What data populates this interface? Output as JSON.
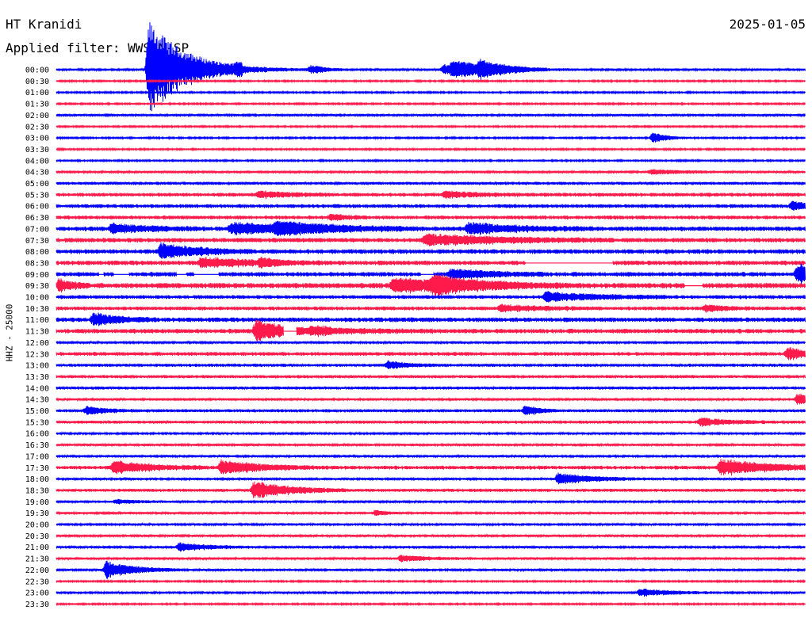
{
  "header": {
    "station": "HT Kranidi",
    "date": "2025-01-05",
    "filter": "Applied filter: WWSSN-SP"
  },
  "chart_data": {
    "type": "line",
    "title": "HT Kranidi",
    "subtitle": "Applied filter: WWSSN-SP",
    "ylabel": "HHZ - 25000",
    "row_labels": [
      "00:00",
      "00:30",
      "01:00",
      "01:30",
      "02:00",
      "02:30",
      "03:00",
      "03:30",
      "04:00",
      "04:30",
      "05:00",
      "05:30",
      "06:00",
      "06:30",
      "07:00",
      "07:30",
      "08:00",
      "08:30",
      "09:00",
      "09:30",
      "10:00",
      "10:30",
      "11:00",
      "11:30",
      "12:00",
      "12:30",
      "13:00",
      "13:30",
      "14:00",
      "14:30",
      "15:00",
      "15:30",
      "16:00",
      "16:30",
      "17:00",
      "17:30",
      "18:00",
      "18:30",
      "19:00",
      "19:30",
      "20:00",
      "20:30",
      "21:00",
      "21:30",
      "22:00",
      "22:30",
      "23:00",
      "23:30"
    ],
    "row_minutes": 30,
    "series_colors": [
      "#0000ff",
      "#ff1a4b"
    ],
    "noise_level": [
      1.5,
      1,
      1,
      1,
      1.5,
      1,
      1,
      1,
      1,
      1.5,
      2,
      2.5,
      2.5,
      2.5,
      3,
      3,
      3,
      3,
      3,
      3.5,
      2.5,
      2.5,
      3,
      3,
      1.5,
      2.5,
      2,
      2,
      2,
      1.5,
      2,
      2,
      1.5,
      1.5,
      1.5,
      2.5,
      1.5,
      2,
      1.5,
      1.5,
      1.5,
      1.5,
      1.5,
      1.5,
      1.5,
      1,
      1.5,
      1
    ],
    "events": [
      {
        "row": 0,
        "minute": 3.7,
        "amplitude": 62,
        "duration": 1.5
      },
      {
        "row": 0,
        "minute": 7.2,
        "amplitude": 5,
        "duration": 1.5
      },
      {
        "row": 0,
        "minute": 10.2,
        "amplitude": 5,
        "duration": 0.6
      },
      {
        "row": 0,
        "minute": 15.5,
        "amplitude": 6,
        "duration": 2
      },
      {
        "row": 0,
        "minute": 15.9,
        "amplitude": 8,
        "duration": 1.5
      },
      {
        "row": 0,
        "minute": 17,
        "amplitude": 8,
        "duration": 0.8
      },
      {
        "row": 6,
        "minute": 23.9,
        "amplitude": 7,
        "duration": 0.6
      },
      {
        "row": 9,
        "minute": 23.8,
        "amplitude": 3,
        "duration": 1.5
      },
      {
        "row": 11,
        "minute": 8.1,
        "amplitude": 4,
        "duration": 1.2
      },
      {
        "row": 11,
        "minute": 15.6,
        "amplitude": 4,
        "duration": 1.2
      },
      {
        "row": 12,
        "minute": 29.5,
        "amplitude": 6,
        "duration": 0.8
      },
      {
        "row": 13,
        "minute": 11,
        "amplitude": 4,
        "duration": 0.6
      },
      {
        "row": 14,
        "minute": 2.2,
        "amplitude": 6,
        "duration": 1.5
      },
      {
        "row": 14,
        "minute": 7,
        "amplitude": 7,
        "duration": 3
      },
      {
        "row": 14,
        "minute": 8.8,
        "amplitude": 6,
        "duration": 2
      },
      {
        "row": 14,
        "minute": 16.5,
        "amplitude": 7,
        "duration": 2
      },
      {
        "row": 15,
        "minute": 14.8,
        "amplitude": 7,
        "duration": 3
      },
      {
        "row": 16,
        "minute": 4.2,
        "amplitude": 10,
        "duration": 1.5
      },
      {
        "row": 17,
        "minute": 5.8,
        "amplitude": 6,
        "duration": 2
      },
      {
        "row": 17,
        "minute": 8.2,
        "amplitude": 4,
        "duration": 0.6
      },
      {
        "row": 18,
        "minute": 15.8,
        "amplitude": 7,
        "duration": 1.5
      },
      {
        "row": 18,
        "minute": 29.7,
        "amplitude": 13,
        "duration": 1.2
      },
      {
        "row": 19,
        "minute": 0.1,
        "amplitude": 8,
        "duration": 0.5
      },
      {
        "row": 19,
        "minute": 13.5,
        "amplitude": 9,
        "duration": 3
      },
      {
        "row": 19,
        "minute": 15.1,
        "amplitude": 9,
        "duration": 1.5
      },
      {
        "row": 20,
        "minute": 19.6,
        "amplitude": 6,
        "duration": 2
      },
      {
        "row": 21,
        "minute": 17.8,
        "amplitude": 4,
        "duration": 1.5
      },
      {
        "row": 21,
        "minute": 26,
        "amplitude": 4,
        "duration": 0.8
      },
      {
        "row": 22,
        "minute": 1.5,
        "amplitude": 8,
        "duration": 1
      },
      {
        "row": 23,
        "minute": 8,
        "amplitude": 14,
        "duration": 1.2
      },
      {
        "row": 23,
        "minute": 10.2,
        "amplitude": 4,
        "duration": 2
      },
      {
        "row": 25,
        "minute": 29.3,
        "amplitude": 7,
        "duration": 1.2
      },
      {
        "row": 26,
        "minute": 13.3,
        "amplitude": 5,
        "duration": 0.8
      },
      {
        "row": 29,
        "minute": 29.7,
        "amplitude": 8,
        "duration": 0.5
      },
      {
        "row": 30,
        "minute": 1.2,
        "amplitude": 5,
        "duration": 0.8
      },
      {
        "row": 30,
        "minute": 18.8,
        "amplitude": 7,
        "duration": 0.5
      },
      {
        "row": 31,
        "minute": 25.8,
        "amplitude": 5,
        "duration": 1.2
      },
      {
        "row": 35,
        "minute": 2.3,
        "amplitude": 8,
        "duration": 1.5
      },
      {
        "row": 35,
        "minute": 6.6,
        "amplitude": 9,
        "duration": 1.5
      },
      {
        "row": 35,
        "minute": 26.6,
        "amplitude": 10,
        "duration": 2
      },
      {
        "row": 36,
        "minute": 20.1,
        "amplitude": 7,
        "duration": 1.5
      },
      {
        "row": 37,
        "minute": 7.9,
        "amplitude": 11,
        "duration": 1.5
      },
      {
        "row": 38,
        "minute": 2.4,
        "amplitude": 3,
        "duration": 0.8
      },
      {
        "row": 39,
        "minute": 12.8,
        "amplitude": 4,
        "duration": 0.4
      },
      {
        "row": 42,
        "minute": 4.9,
        "amplitude": 6,
        "duration": 1.2
      },
      {
        "row": 43,
        "minute": 13.8,
        "amplitude": 4,
        "duration": 1.2
      },
      {
        "row": 44,
        "minute": 2,
        "amplitude": 11,
        "duration": 1.2
      },
      {
        "row": 46,
        "minute": 23.4,
        "amplitude": 5,
        "duration": 1.2
      }
    ],
    "gaps": [
      {
        "row": 17,
        "start": 18.8,
        "end": 22.3
      },
      {
        "row": 18,
        "start": 1.7,
        "end": 1.9
      },
      {
        "row": 18,
        "start": 2.3,
        "end": 2.9
      },
      {
        "row": 18,
        "start": 4.8,
        "end": 5.2
      },
      {
        "row": 18,
        "start": 5.5,
        "end": 6.5
      },
      {
        "row": 18,
        "start": 14.6,
        "end": 15.1
      },
      {
        "row": 19,
        "start": 25.2,
        "end": 25.9
      },
      {
        "row": 23,
        "start": 9.1,
        "end": 9.6
      }
    ],
    "grid": false,
    "legend": "none"
  }
}
